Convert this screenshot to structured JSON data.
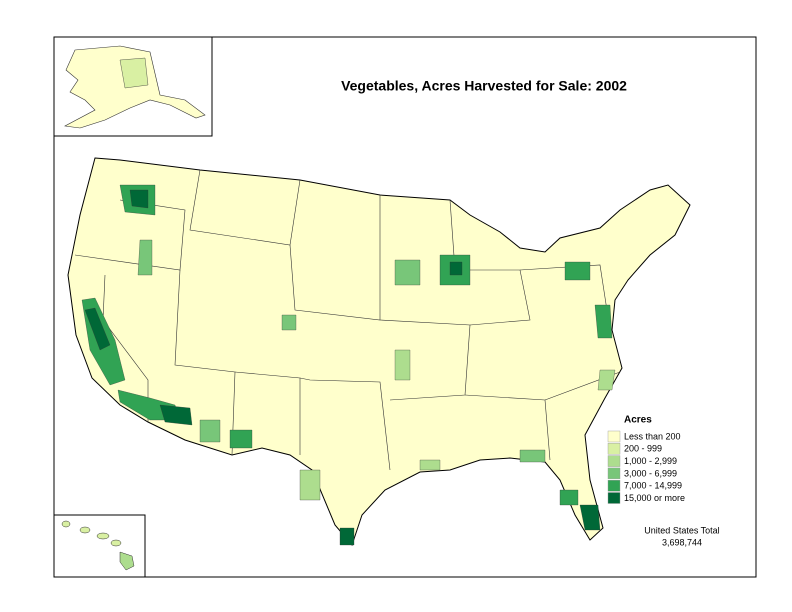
{
  "title": "Vegetables, Acres Harvested for Sale:  2002",
  "legend": {
    "title": "Acres",
    "items": [
      {
        "label": "Less than 200",
        "color": "#ffffcc"
      },
      {
        "label": "200 - 999",
        "color": "#d9f0a3"
      },
      {
        "label": "1,000 - 2,999",
        "color": "#addd8e"
      },
      {
        "label": "3,000 - 6,999",
        "color": "#78c679"
      },
      {
        "label": "7,000 - 14,999",
        "color": "#31a354"
      },
      {
        "label": "15,000 or more",
        "color": "#006837"
      }
    ]
  },
  "total": {
    "label": "United States Total",
    "value": "3,698,744"
  }
}
